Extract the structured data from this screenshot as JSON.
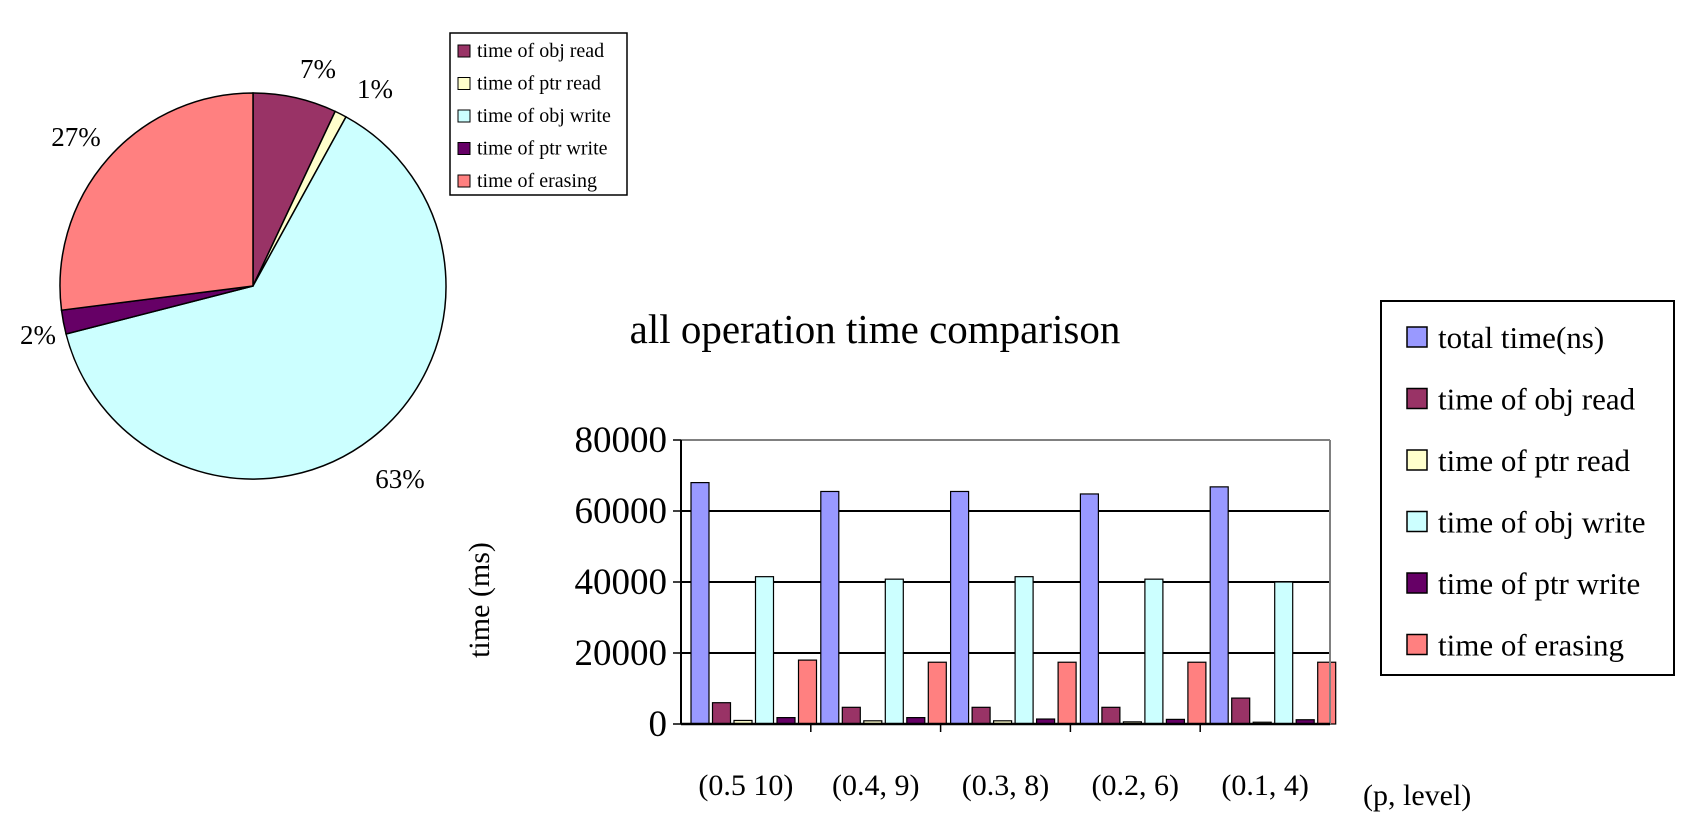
{
  "chart_data": [
    {
      "type": "pie",
      "title": "",
      "slices": [
        {
          "label": "time of obj read",
          "value": 7,
          "pct_label": "7%",
          "color": "#993366"
        },
        {
          "label": "time of ptr read",
          "value": 1,
          "pct_label": "1%",
          "color": "#ffffcc"
        },
        {
          "label": "time of obj write",
          "value": 63,
          "pct_label": "63%",
          "color": "#ccffff"
        },
        {
          "label": "time of ptr write",
          "value": 2,
          "pct_label": "2%",
          "color": "#660066"
        },
        {
          "label": "time of erasing",
          "value": 27,
          "pct_label": "27%",
          "color": "#ff8080"
        }
      ],
      "legend": [
        "time of obj read",
        "time of ptr read",
        "time of obj write",
        "time of ptr write",
        "time of erasing"
      ],
      "legend_position": "top-right"
    },
    {
      "type": "bar",
      "title": "all operation time comparison",
      "xlabel": "(p, level)",
      "ylabel": "time (ms)",
      "ylim": [
        0,
        80000
      ],
      "yticks": [
        "0",
        "20000",
        "40000",
        "60000",
        "80000"
      ],
      "categories": [
        "(0.5 10)",
        "(0.4, 9)",
        "(0.3, 8)",
        "(0.2, 6)",
        "(0.1, 4)"
      ],
      "grid": true,
      "legend_position": "right",
      "series": [
        {
          "name": "total time(ns)",
          "color": "#9999ff",
          "values": [
            68000,
            65500,
            65500,
            64800,
            66800
          ]
        },
        {
          "name": "time of obj read",
          "color": "#993366",
          "values": [
            6000,
            4700,
            4700,
            4700,
            7300
          ]
        },
        {
          "name": "time of ptr read",
          "color": "#ffffcc",
          "values": [
            1000,
            900,
            900,
            600,
            500
          ]
        },
        {
          "name": "time of obj write",
          "color": "#ccffff",
          "values": [
            41500,
            40800,
            41500,
            40800,
            40000
          ]
        },
        {
          "name": "time of ptr write",
          "color": "#660066",
          "values": [
            1800,
            1800,
            1400,
            1300,
            1200
          ]
        },
        {
          "name": "time of erasing",
          "color": "#ff8080",
          "values": [
            18000,
            17400,
            17400,
            17400,
            17400
          ]
        }
      ]
    }
  ]
}
